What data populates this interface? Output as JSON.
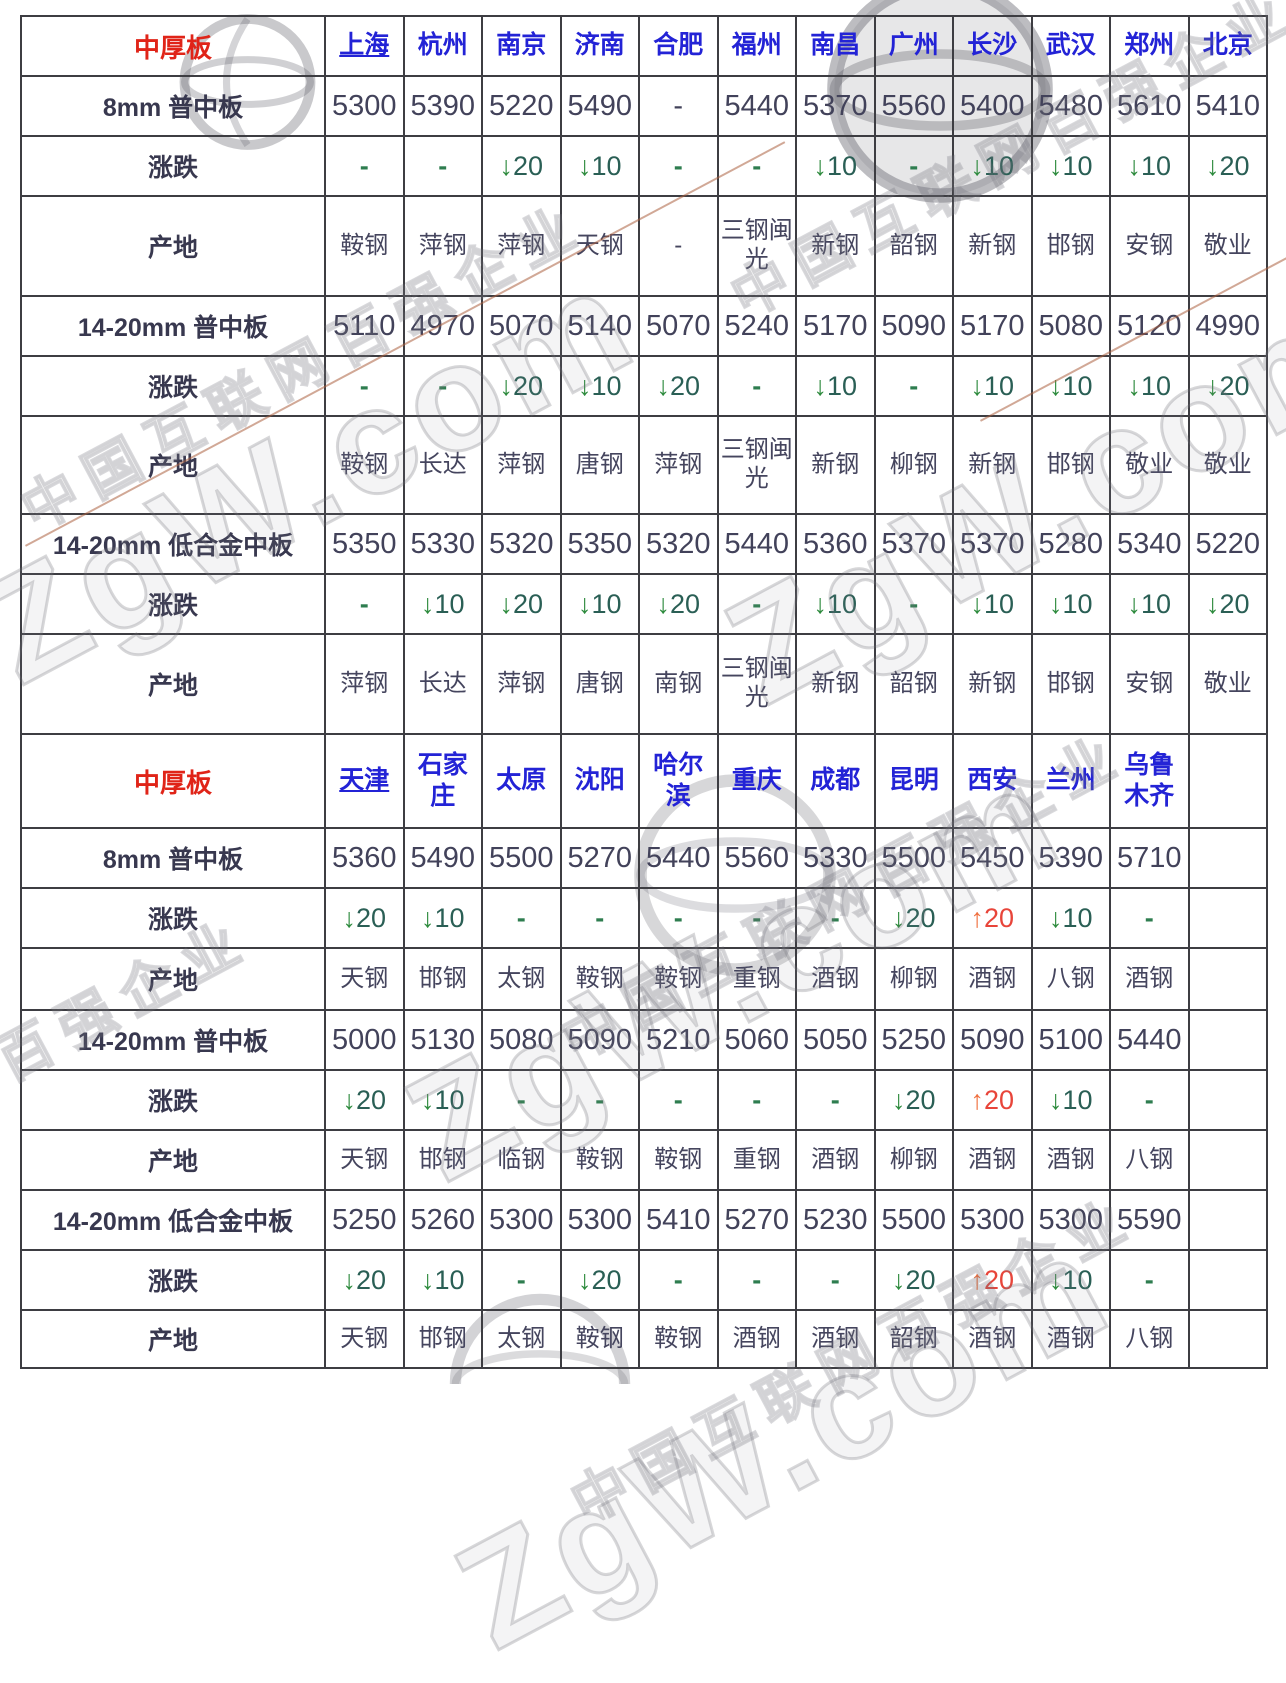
{
  "watermark": {
    "brand": "ZgW.com",
    "slogan": "中国互联网百强企业"
  },
  "colors": {
    "corner_red": "#e02418",
    "city_blue": "#2323d6",
    "price_navy": "#42425a",
    "down_green": "#2e8b3e",
    "up_red": "#e8453a",
    "border": "#3d3d42"
  },
  "chart_data": [
    {
      "type": "table",
      "corner_label": "中厚板",
      "columns": [
        "上海",
        "杭州",
        "南京",
        "济南",
        "合肥",
        "福州",
        "南昌",
        "广州",
        "长沙",
        "武汉",
        "郑州",
        "北京"
      ],
      "underlined_columns": [
        "上海"
      ],
      "rows": [
        {
          "label": "8mm 普中板",
          "kind": "price",
          "values": [
            "5300",
            "5390",
            "5220",
            "5490",
            "-",
            "5440",
            "5370",
            "5560",
            "5400",
            "5480",
            "5610",
            "5410"
          ]
        },
        {
          "label": "涨跌",
          "kind": "change",
          "values": [
            "-",
            "-",
            "↓20",
            "↓10",
            "-",
            "-",
            "↓10",
            "-",
            "↓10",
            "↓10",
            "↓10",
            "↓20"
          ]
        },
        {
          "label": "产地",
          "kind": "origin",
          "values": [
            "鞍钢",
            "萍钢",
            "萍钢",
            "天钢",
            "-",
            "三钢闽光",
            "新钢",
            "韶钢",
            "新钢",
            "邯钢",
            "安钢",
            "敬业"
          ]
        },
        {
          "label": "14-20mm 普中板",
          "kind": "price",
          "values": [
            "5110",
            "4970",
            "5070",
            "5140",
            "5070",
            "5240",
            "5170",
            "5090",
            "5170",
            "5080",
            "5120",
            "4990"
          ]
        },
        {
          "label": "涨跌",
          "kind": "change",
          "values": [
            "-",
            "-",
            "↓20",
            "↓10",
            "↓20",
            "-",
            "↓10",
            "-",
            "↓10",
            "↓10",
            "↓10",
            "↓20"
          ]
        },
        {
          "label": "产地",
          "kind": "origin",
          "values": [
            "鞍钢",
            "长达",
            "萍钢",
            "唐钢",
            "萍钢",
            "三钢闽光",
            "新钢",
            "柳钢",
            "新钢",
            "邯钢",
            "敬业",
            "敬业"
          ]
        },
        {
          "label": "14-20mm 低合金中板",
          "kind": "price",
          "values": [
            "5350",
            "5330",
            "5320",
            "5350",
            "5320",
            "5440",
            "5360",
            "5370",
            "5370",
            "5280",
            "5340",
            "5220"
          ]
        },
        {
          "label": "涨跌",
          "kind": "change",
          "values": [
            "-",
            "↓10",
            "↓20",
            "↓10",
            "↓20",
            "-",
            "↓10",
            "-",
            "↓10",
            "↓10",
            "↓10",
            "↓20"
          ]
        },
        {
          "label": "产地",
          "kind": "origin",
          "values": [
            "萍钢",
            "长达",
            "萍钢",
            "唐钢",
            "南钢",
            "三钢闽光",
            "新钢",
            "韶钢",
            "新钢",
            "邯钢",
            "安钢",
            "敬业"
          ]
        }
      ]
    },
    {
      "type": "table",
      "corner_label": "中厚板",
      "columns": [
        "天津",
        "石家庄",
        "太原",
        "沈阳",
        "哈尔滨",
        "重庆",
        "成都",
        "昆明",
        "西安",
        "兰州",
        "乌鲁木齐",
        ""
      ],
      "underlined_columns": [
        "天津"
      ],
      "rows": [
        {
          "label": "8mm 普中板",
          "kind": "price",
          "values": [
            "5360",
            "5490",
            "5500",
            "5270",
            "5440",
            "5560",
            "5330",
            "5500",
            "5450",
            "5390",
            "5710",
            ""
          ]
        },
        {
          "label": "涨跌",
          "kind": "change",
          "values": [
            "↓20",
            "↓10",
            "-",
            "-",
            "-",
            "-",
            "-",
            "↓20",
            "↑20",
            "↓10",
            "-",
            ""
          ]
        },
        {
          "label": "产地",
          "kind": "origin",
          "values": [
            "天钢",
            "邯钢",
            "太钢",
            "鞍钢",
            "鞍钢",
            "重钢",
            "酒钢",
            "柳钢",
            "酒钢",
            "八钢",
            "酒钢",
            ""
          ]
        },
        {
          "label": "14-20mm 普中板",
          "kind": "price",
          "values": [
            "5000",
            "5130",
            "5080",
            "5090",
            "5210",
            "5060",
            "5050",
            "5250",
            "5090",
            "5100",
            "5440",
            ""
          ]
        },
        {
          "label": "涨跌",
          "kind": "change",
          "values": [
            "↓20",
            "↓10",
            "-",
            "-",
            "-",
            "-",
            "-",
            "↓20",
            "↑20",
            "↓10",
            "-",
            ""
          ]
        },
        {
          "label": "产地",
          "kind": "origin",
          "values": [
            "天钢",
            "邯钢",
            "临钢",
            "鞍钢",
            "鞍钢",
            "重钢",
            "酒钢",
            "柳钢",
            "酒钢",
            "酒钢",
            "八钢",
            ""
          ]
        },
        {
          "label": "14-20mm 低合金中板",
          "kind": "price",
          "values": [
            "5250",
            "5260",
            "5300",
            "5300",
            "5410",
            "5270",
            "5230",
            "5500",
            "5300",
            "5300",
            "5590",
            ""
          ]
        },
        {
          "label": "涨跌",
          "kind": "change",
          "values": [
            "↓20",
            "↓10",
            "-",
            "↓20",
            "-",
            "-",
            "-",
            "↓20",
            "↑20",
            "↓10",
            "-",
            ""
          ]
        },
        {
          "label": "产地",
          "kind": "origin",
          "values": [
            "天钢",
            "邯钢",
            "太钢",
            "鞍钢",
            "鞍钢",
            "酒钢",
            "酒钢",
            "韶钢",
            "酒钢",
            "酒钢",
            "八钢",
            ""
          ]
        }
      ]
    }
  ]
}
